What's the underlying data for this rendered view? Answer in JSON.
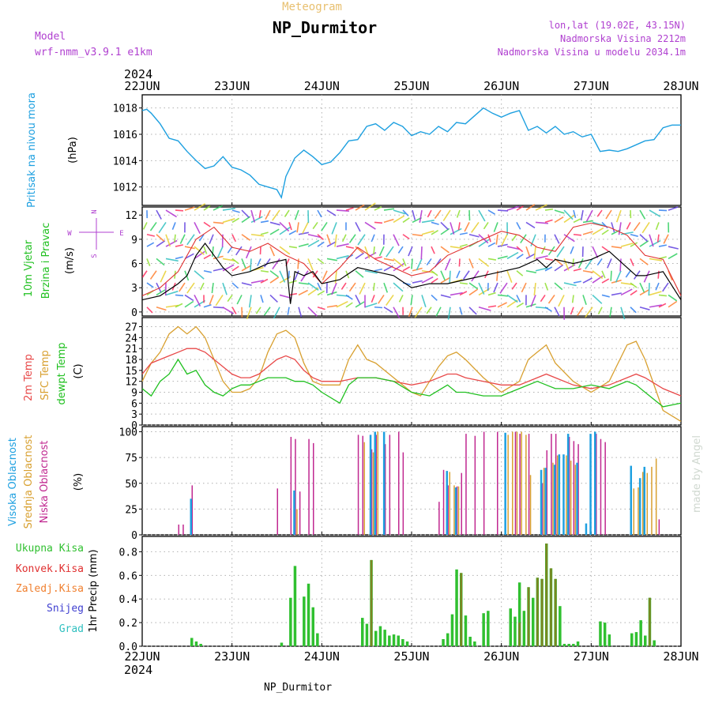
{
  "header": {
    "meteogram_label": "Meteogram",
    "station": "NP_Durmitor",
    "model_label": "Model",
    "model_name": "wrf-nmm_v3.9.1 e1km",
    "lonlat": "lon,lat (19.02E, 43.15N)",
    "elevation": "Nadmorska Visina 2212m",
    "model_elevation": "Nadmorska Visina u modelu 2034.1m",
    "year_top": "2024",
    "year_bottom": "2024",
    "footer_station": "NP_Durmitor",
    "credit": "made by Angel"
  },
  "colors": {
    "pressure": "#1ea0e0",
    "wind_speed": "#000000",
    "gust": "#e03030",
    "temp2m": "#e84848",
    "sfc_temp": "#d8a030",
    "dewpt": "#20c020",
    "cloud_high": "#1ea0e0",
    "cloud_mid": "#d8a030",
    "cloud_low": "#c02890",
    "total_precip": "#30c030",
    "convective": "#e03030",
    "frozen": "#f08030",
    "snow": "#4040d0",
    "graupel": "#30c0c0",
    "purple_label": "#b040d0"
  },
  "chart_data": [
    {
      "id": "pressure",
      "type": "line",
      "ylabel_lines": [
        "Pritisak na nivou mora",
        "(hPa)"
      ],
      "x_tick_labels": [
        "22JUN",
        "23JUN",
        "24JUN",
        "25JUN",
        "26JUN",
        "27JUN",
        "28JUN"
      ],
      "y_ticks": [
        1012,
        1014,
        1016,
        1018
      ],
      "ylim": [
        1010.6,
        1019.0
      ],
      "grid": true,
      "series": [
        {
          "x": [
            0,
            0.05,
            0.1,
            0.15,
            0.2,
            0.3,
            0.4,
            0.5,
            0.6,
            0.7,
            0.8,
            0.9,
            1.0,
            1.1,
            1.2,
            1.3,
            1.4,
            1.5,
            1.55,
            1.6,
            1.7,
            1.8,
            1.9,
            2.0,
            2.1,
            2.2,
            2.3,
            2.4,
            2.5,
            2.6,
            2.7,
            2.8,
            2.9,
            3.0,
            3.1,
            3.2,
            3.3,
            3.4,
            3.5,
            3.6,
            3.7,
            3.8,
            3.9,
            4.0,
            4.1,
            4.2,
            4.3,
            4.4,
            4.5,
            4.6,
            4.7,
            4.8,
            4.9,
            5.0,
            5.1,
            5.2,
            5.3,
            5.4,
            5.5,
            5.6,
            5.7,
            5.8,
            5.9,
            6.0
          ],
          "values": [
            1017.8,
            1017.9,
            1017.6,
            1017.2,
            1016.8,
            1015.7,
            1015.5,
            1014.7,
            1014.0,
            1013.4,
            1013.6,
            1014.3,
            1013.5,
            1013.3,
            1012.9,
            1012.2,
            1012.0,
            1011.8,
            1011.2,
            1012.8,
            1014.2,
            1014.8,
            1014.3,
            1013.7,
            1013.9,
            1014.6,
            1015.5,
            1015.6,
            1016.6,
            1016.8,
            1016.3,
            1016.9,
            1016.6,
            1015.9,
            1016.2,
            1016.0,
            1016.6,
            1016.2,
            1016.9,
            1016.8,
            1017.4,
            1018.0,
            1017.6,
            1017.3,
            1017.6,
            1017.8,
            1016.3,
            1016.6,
            1016.1,
            1016.6,
            1016.0,
            1016.2,
            1015.8,
            1016.0,
            1014.7,
            1014.8,
            1014.7,
            1014.9,
            1015.2,
            1015.5,
            1015.6,
            1016.5,
            1016.7,
            1016.7
          ]
        }
      ]
    },
    {
      "id": "wind",
      "type": "line",
      "ylabel_lines": [
        "10m Vjetar",
        "Brzina i Pravac",
        "(m/s)"
      ],
      "compass_labels": [
        "N",
        "W",
        "E",
        "S"
      ],
      "y_ticks": [
        0,
        3,
        6,
        9,
        12
      ],
      "ylim": [
        -0.5,
        13.0
      ],
      "grid": true,
      "series": [
        {
          "name": "speed",
          "x": [
            0,
            0.2,
            0.4,
            0.5,
            0.6,
            0.7,
            0.8,
            0.9,
            1.0,
            1.2,
            1.4,
            1.6,
            1.65,
            1.7,
            1.8,
            1.9,
            2.0,
            2.2,
            2.4,
            2.6,
            2.8,
            3.0,
            3.2,
            3.4,
            3.6,
            3.8,
            4.0,
            4.2,
            4.4,
            4.5,
            4.6,
            4.8,
            5.0,
            5.2,
            5.4,
            5.5,
            5.6,
            5.8,
            6.0
          ],
          "values": [
            1.5,
            2.0,
            3.5,
            4.5,
            7.0,
            8.5,
            7.0,
            5.5,
            4.5,
            5.0,
            6.0,
            6.5,
            1.0,
            5.0,
            4.5,
            5.0,
            3.5,
            4.0,
            5.5,
            5.0,
            4.5,
            3.0,
            3.5,
            3.5,
            4.0,
            4.5,
            5.0,
            5.5,
            6.5,
            5.5,
            6.5,
            6.0,
            6.5,
            7.5,
            5.5,
            4.5,
            4.5,
            5.0,
            1.5
          ]
        },
        {
          "name": "gust",
          "x": [
            0,
            0.2,
            0.4,
            0.6,
            0.8,
            1.0,
            1.2,
            1.4,
            1.6,
            1.8,
            2.0,
            2.2,
            2.4,
            2.6,
            2.8,
            3.0,
            3.2,
            3.4,
            3.6,
            3.8,
            4.0,
            4.2,
            4.4,
            4.6,
            4.8,
            5.0,
            5.2,
            5.4,
            5.6,
            5.8,
            6.0
          ],
          "values": [
            2.0,
            3.0,
            5.0,
            9.0,
            10.5,
            8.0,
            7.5,
            8.5,
            7.0,
            6.0,
            3.5,
            5.5,
            8.0,
            6.5,
            5.5,
            4.5,
            5.0,
            7.0,
            8.0,
            9.0,
            10.0,
            9.5,
            8.0,
            7.5,
            10.5,
            11.0,
            10.5,
            9.5,
            7.0,
            6.5,
            2.0
          ]
        }
      ]
    },
    {
      "id": "temperature",
      "type": "line",
      "ylabel_lines": [
        "2m Temp",
        "SFC Temp",
        "dewpt Temp",
        "(C)"
      ],
      "y_ticks": [
        0,
        3,
        6,
        9,
        12,
        15,
        18,
        21,
        24,
        27
      ],
      "ylim": [
        0,
        29.5
      ],
      "grid": true,
      "series": [
        {
          "name": "2m Temp",
          "x": [
            0,
            0.1,
            0.2,
            0.3,
            0.4,
            0.5,
            0.6,
            0.7,
            0.8,
            0.9,
            1.0,
            1.1,
            1.2,
            1.3,
            1.4,
            1.5,
            1.6,
            1.7,
            1.8,
            1.9,
            2.0,
            2.2,
            2.4,
            2.6,
            2.8,
            3.0,
            3.2,
            3.4,
            3.5,
            3.6,
            3.8,
            4.0,
            4.2,
            4.4,
            4.5,
            4.6,
            4.8,
            5.0,
            5.2,
            5.4,
            5.5,
            5.6,
            5.8,
            6.0
          ],
          "values": [
            14,
            17,
            18,
            19,
            20,
            21,
            21,
            20,
            18,
            16,
            14,
            13,
            13,
            14,
            16,
            18,
            19,
            18,
            15,
            13,
            12,
            12,
            13,
            13,
            12,
            11,
            12,
            14,
            14,
            13,
            12,
            11,
            11,
            13,
            14,
            13,
            11,
            10,
            11,
            13,
            14,
            13,
            10,
            8
          ]
        },
        {
          "name": "SFC Temp",
          "x": [
            0,
            0.1,
            0.2,
            0.3,
            0.4,
            0.5,
            0.6,
            0.7,
            0.8,
            0.9,
            1.0,
            1.1,
            1.2,
            1.3,
            1.4,
            1.5,
            1.6,
            1.7,
            1.8,
            1.9,
            2.0,
            2.2,
            2.3,
            2.4,
            2.5,
            2.6,
            2.8,
            3.0,
            3.1,
            3.2,
            3.3,
            3.4,
            3.5,
            3.6,
            3.8,
            4.0,
            4.2,
            4.3,
            4.4,
            4.5,
            4.6,
            4.8,
            5.0,
            5.2,
            5.3,
            5.4,
            5.5,
            5.6,
            5.8,
            6.0
          ],
          "values": [
            12,
            17,
            20,
            25,
            27,
            25,
            27,
            24,
            18,
            12,
            9,
            9,
            10,
            13,
            20,
            25,
            26,
            24,
            17,
            12,
            11,
            11,
            18,
            22,
            18,
            17,
            13,
            9,
            8,
            12,
            16,
            19,
            20,
            18,
            13,
            9,
            12,
            18,
            20,
            22,
            17,
            12,
            9,
            12,
            17,
            22,
            23,
            18,
            4,
            1
          ]
        },
        {
          "name": "dewpt Temp",
          "x": [
            0,
            0.1,
            0.2,
            0.3,
            0.4,
            0.5,
            0.6,
            0.7,
            0.8,
            0.9,
            1.0,
            1.1,
            1.2,
            1.3,
            1.4,
            1.5,
            1.6,
            1.7,
            1.8,
            1.9,
            2.0,
            2.2,
            2.3,
            2.4,
            2.6,
            2.8,
            3.0,
            3.2,
            3.4,
            3.5,
            3.6,
            3.8,
            4.0,
            4.2,
            4.4,
            4.5,
            4.6,
            4.8,
            5.0,
            5.2,
            5.4,
            5.5,
            5.6,
            5.8,
            6.0
          ],
          "values": [
            10,
            8,
            12,
            14,
            18,
            14,
            15,
            11,
            9,
            8,
            10,
            11,
            11,
            12,
            13,
            13,
            13,
            12,
            12,
            11,
            9,
            6,
            11,
            13,
            13,
            12,
            9,
            8,
            11,
            9,
            9,
            8,
            8,
            10,
            12,
            11,
            10,
            10,
            11,
            10,
            12,
            11,
            9,
            5,
            6
          ]
        }
      ]
    },
    {
      "id": "clouds",
      "type": "bar",
      "ylabel_lines": [
        "Visoka Oblacnost",
        "Srednja Oblacnost",
        "Niska Oblacnost",
        "(%)"
      ],
      "y_ticks": [
        0,
        25,
        50,
        75,
        100
      ],
      "ylim": [
        0,
        105
      ],
      "grid": true,
      "low": {
        "x": [
          0.4,
          0.45,
          0.55,
          1.5,
          1.65,
          1.7,
          1.75,
          1.85,
          1.9,
          2.4,
          2.45,
          2.55,
          2.6,
          2.7,
          2.75,
          2.85,
          2.9,
          3.3,
          3.35,
          3.4,
          3.5,
          3.55,
          3.6,
          3.7,
          3.8,
          3.95,
          4.15,
          4.2,
          4.3,
          4.45,
          4.5,
          4.55,
          4.6,
          4.75,
          4.8,
          4.85,
          5.05,
          5.1,
          5.15,
          5.75
        ],
        "values": [
          10,
          10,
          48,
          45,
          95,
          93,
          42,
          93,
          89,
          97,
          96,
          83,
          97,
          88,
          97,
          100,
          80,
          32,
          63,
          48,
          47,
          60,
          98,
          96,
          100,
          100,
          100,
          98,
          98,
          50,
          82,
          98,
          98,
          95,
          91,
          88,
          98,
          93,
          90,
          15
        ]
      },
      "mid": {
        "x": [
          1.7,
          2.45,
          2.55,
          2.6,
          3.4,
          3.45,
          3.5,
          4.05,
          4.1,
          4.15,
          4.2,
          4.25,
          4.3,
          4.45,
          4.55,
          4.6,
          4.7,
          4.75,
          4.8,
          5.45,
          5.5,
          5.55,
          5.6,
          5.65,
          5.7
        ],
        "values": [
          25,
          90,
          80,
          100,
          61,
          48,
          47,
          97,
          100,
          100,
          100,
          97,
          58,
          65,
          70,
          77,
          77,
          72,
          68,
          45,
          46,
          61,
          60,
          66,
          74
        ]
      },
      "high": {
        "x": [
          0.55,
          1.7,
          2.55,
          2.6,
          2.7,
          3.4,
          3.5,
          4.05,
          4.45,
          4.5,
          4.6,
          4.65,
          4.7,
          4.75,
          4.85,
          4.95,
          5.0,
          5.05,
          5.45,
          5.55,
          5.6
        ],
        "values": [
          35,
          43,
          97,
          100,
          100,
          62,
          46,
          99,
          63,
          65,
          68,
          78,
          78,
          98,
          70,
          11,
          98,
          100,
          67,
          55,
          66
        ]
      }
    },
    {
      "id": "precip",
      "type": "bar",
      "legend": [
        "Ukupna Kisa",
        "Konvek.Kisa",
        "Zaledj.Kisa",
        "Snijeg",
        "Grad"
      ],
      "ylabel_lines": [
        "1hr Precip (mm)"
      ],
      "y_ticks": [
        0.0,
        0.2,
        0.4,
        0.6,
        0.8
      ],
      "ylim": [
        0,
        0.93
      ],
      "grid": true,
      "total": {
        "x": [
          0.55,
          0.6,
          0.65,
          1.55,
          1.65,
          1.7,
          1.8,
          1.85,
          1.9,
          1.95,
          2.45,
          2.5,
          2.55,
          2.6,
          2.65,
          2.7,
          2.75,
          2.8,
          2.85,
          2.9,
          2.95,
          3.35,
          3.4,
          3.45,
          3.5,
          3.55,
          3.6,
          3.65,
          3.7,
          3.8,
          3.85,
          4.1,
          4.15,
          4.2,
          4.25,
          4.3,
          4.35,
          4.4,
          4.45,
          4.5,
          4.55,
          4.6,
          4.65,
          4.7,
          4.75,
          4.8,
          4.85,
          5.1,
          5.15,
          5.2,
          5.45,
          5.5,
          5.55,
          5.6,
          5.65,
          5.7
        ],
        "values": [
          0.07,
          0.04,
          0.02,
          0.03,
          0.41,
          0.68,
          0.42,
          0.53,
          0.33,
          0.11,
          0.24,
          0.19,
          0.73,
          0.13,
          0.17,
          0.14,
          0.09,
          0.1,
          0.09,
          0.06,
          0.04,
          0.06,
          0.11,
          0.27,
          0.65,
          0.62,
          0.26,
          0.08,
          0.04,
          0.28,
          0.3,
          0.32,
          0.25,
          0.54,
          0.3,
          0.5,
          0.41,
          0.58,
          0.57,
          0.87,
          0.66,
          0.57,
          0.34,
          0.02,
          0.02,
          0.02,
          0.04,
          0.21,
          0.2,
          0.1,
          0.11,
          0.12,
          0.22,
          0.09,
          0.41,
          0.05
        ]
      },
      "convective": {
        "x": [
          2.55,
          3.55,
          4.2,
          4.3,
          4.4,
          4.45,
          4.5,
          4.55,
          4.6,
          5.65
        ],
        "values": [
          0.73,
          0.62,
          0.2,
          0.5,
          0.58,
          0.57,
          0.87,
          0.66,
          0.57,
          0.41
        ]
      }
    }
  ]
}
